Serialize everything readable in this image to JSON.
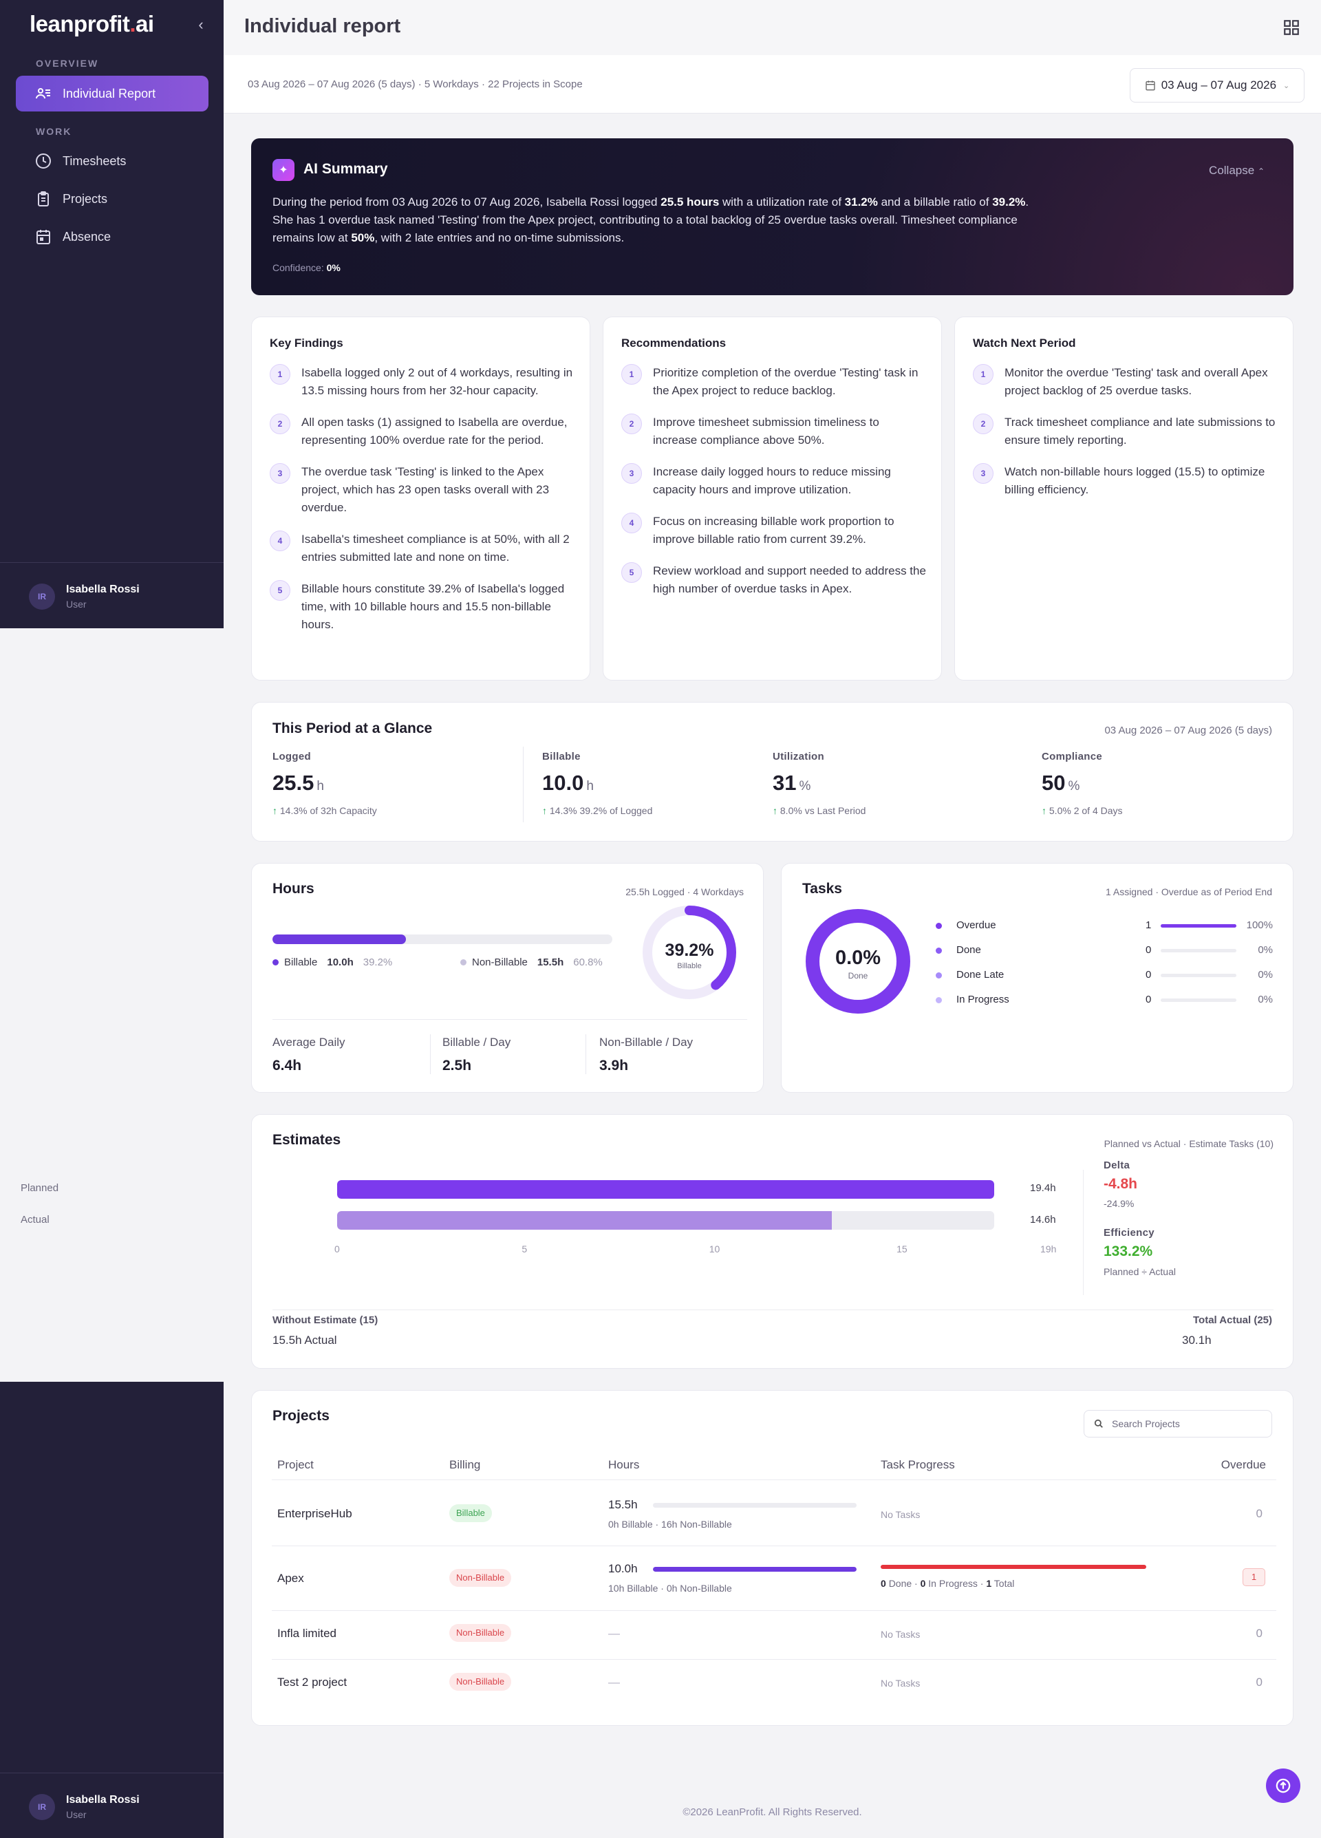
{
  "app": {
    "logo_main": "leanprofit",
    "logo_dot": ".",
    "logo_tail": "ai"
  },
  "sidebar": {
    "section_overview": "OVERVIEW",
    "section_work": "WORK",
    "items": [
      {
        "label": "Individual Report",
        "icon": "report-icon"
      },
      {
        "label": "Timesheets",
        "icon": "clock-icon"
      },
      {
        "label": "Projects",
        "icon": "clipboard-icon"
      },
      {
        "label": "Absence",
        "icon": "calendar-icon"
      }
    ],
    "user": {
      "initials": "IR",
      "name": "Isabella Rossi",
      "role": "User"
    }
  },
  "header": {
    "title": "Individual report"
  },
  "subheader": {
    "meta": "03 Aug 2026 – 07 Aug 2026 (5 days) · 5 Workdays · 22 Projects in Scope",
    "date_range": "03 Aug – 07 Aug 2026"
  },
  "ai_summary": {
    "title": "AI Summary",
    "collapse_label": "Collapse",
    "text_parts": [
      "During the period from 03 Aug 2026 to 07 Aug 2026, Isabella Rossi logged ",
      "25.5 hours",
      " with a utilization rate of ",
      "31.2%",
      " and a billable ratio of ",
      "39.2%",
      ". She has 1 overdue task named 'Testing' from the Apex project, contributing to a total backlog of 25 overdue tasks overall. Timesheet compliance remains low at ",
      "50%",
      ", with 2 late entries and no on-time submissions."
    ],
    "confidence_label": "Confidence:",
    "confidence_value": "0%"
  },
  "findings": {
    "key": {
      "title": "Key Findings",
      "items": [
        "Isabella logged only 2 out of 4 workdays, resulting in 13.5 missing hours from her 32-hour capacity.",
        "All open tasks (1) assigned to Isabella are overdue, representing 100% overdue rate for the period.",
        "The overdue task 'Testing' is linked to the Apex project, which has 23 open tasks overall with 23 overdue.",
        "Isabella's timesheet compliance is at 50%, with all 2 entries submitted late and none on time.",
        "Billable hours constitute 39.2% of Isabella's logged time, with 10 billable hours and 15.5 non-billable hours."
      ]
    },
    "recs": {
      "title": "Recommendations",
      "items": [
        "Prioritize completion of the overdue 'Testing' task in the Apex project to reduce backlog.",
        "Improve timesheet submission timeliness to increase compliance above 50%.",
        "Increase daily logged hours to reduce missing capacity hours and improve utilization.",
        "Focus on increasing billable work proportion to improve billable ratio from current 39.2%.",
        "Review workload and support needed to address the high number of overdue tasks in Apex."
      ]
    },
    "watch": {
      "title": "Watch Next Period",
      "items": [
        "Monitor the overdue 'Testing' task and overall Apex project backlog of 25 overdue tasks.",
        "Track timesheet compliance and late submissions to ensure timely reporting.",
        "Watch non-billable hours logged (15.5) to optimize billing efficiency."
      ]
    }
  },
  "glance": {
    "title": "This Period at a Glance",
    "range": "03 Aug 2026 – 07 Aug 2026 (5 days)",
    "stats": [
      {
        "label": "Logged",
        "value": "25.5",
        "unit": "h",
        "delta": "14.3%",
        "sub": "of 32h Capacity"
      },
      {
        "label": "Billable",
        "value": "10.0",
        "unit": "h",
        "delta": "14.3%",
        "sub": "39.2% of Logged"
      },
      {
        "label": "Utilization",
        "value": "31",
        "unit": "%",
        "delta": "8.0%",
        "sub": "vs Last Period"
      },
      {
        "label": "Compliance",
        "value": "50",
        "unit": "%",
        "delta": "5.0%",
        "sub": "2 of 4 Days"
      }
    ]
  },
  "hours": {
    "title": "Hours",
    "meta": "25.5h Logged · 4 Workdays",
    "billable_fraction": 0.392,
    "billable": {
      "label": "Billable",
      "value": "10.0h",
      "pct": "39.2%"
    },
    "nonbillable": {
      "label": "Non-Billable",
      "value": "15.5h",
      "pct": "60.8%"
    },
    "donut": {
      "value": "39.2%",
      "label": "Billable"
    },
    "stats": [
      {
        "label": "Average Daily",
        "value": "6.4h"
      },
      {
        "label": "Billable / Day",
        "value": "2.5h"
      },
      {
        "label": "Non-Billable / Day",
        "value": "3.9h"
      }
    ]
  },
  "tasks": {
    "title": "Tasks",
    "meta": "1 Assigned · Overdue as of Period End",
    "donut": {
      "value": "0.0%",
      "label": "Done"
    },
    "rows": [
      {
        "label": "Overdue",
        "count": "1",
        "pct": "100%",
        "fraction": 1,
        "color": "#7c3aed"
      },
      {
        "label": "Done",
        "count": "0",
        "pct": "0%",
        "fraction": 0,
        "color": "#8b5cf6"
      },
      {
        "label": "Done Late",
        "count": "0",
        "pct": "0%",
        "fraction": 0,
        "color": "#a78bfa"
      },
      {
        "label": "In Progress",
        "count": "0",
        "pct": "0%",
        "fraction": 0,
        "color": "#c4b5fd"
      }
    ]
  },
  "estimates": {
    "title": "Estimates",
    "meta": "Planned vs Actual · Estimate Tasks (10)",
    "planned": {
      "label": "Planned",
      "value": "19.4h",
      "hours": 19.4
    },
    "actual": {
      "label": "Actual",
      "value": "14.6h",
      "hours": 14.6
    },
    "axis_max": 19,
    "axis": [
      "0",
      "5",
      "10",
      "15",
      "19h"
    ],
    "delta_label": "Delta",
    "delta_value": "-4.8h",
    "delta_pct": "-24.9%",
    "efficiency_label": "Efficiency",
    "efficiency_value": "133.2%",
    "efficiency_sub": "Planned ÷ Actual",
    "without_label": "Without Estimate (15)",
    "without_value": "15.5h Actual",
    "total_label": "Total Actual (25)",
    "total_value": "30.1h"
  },
  "projects": {
    "title": "Projects",
    "search_placeholder": "Search Projects",
    "columns": [
      "Project",
      "Billing",
      "Hours",
      "Task Progress",
      "Overdue"
    ],
    "rows": [
      {
        "name": "EnterpriseHub",
        "billing": "Billable",
        "hours": "15.5h",
        "hours_sub": "0h Billable · 16h Non-Billable",
        "billable_fraction": 0,
        "progress": "No Tasks",
        "overdue": "0"
      },
      {
        "name": "Apex",
        "billing": "Non-Billable",
        "hours": "10.0h",
        "hours_sub": "10h Billable · 0h Non-Billable",
        "billable_fraction": 1,
        "progress_done": "0",
        "progress_done_lbl": "Done",
        "progress_inprog": "0",
        "progress_inprog_lbl": "In Progress",
        "progress_total": "1",
        "progress_total_lbl": "Total",
        "overdue": "1"
      },
      {
        "name": "Infla limited",
        "billing": "Non-Billable",
        "hours": "—",
        "progress": "No Tasks",
        "overdue": "0"
      },
      {
        "name": "Test 2 project",
        "billing": "Non-Billable",
        "hours": "—",
        "progress": "No Tasks",
        "overdue": "0"
      }
    ]
  },
  "footer": {
    "text": "©2026 LeanProfit. All Rights Reserved."
  }
}
